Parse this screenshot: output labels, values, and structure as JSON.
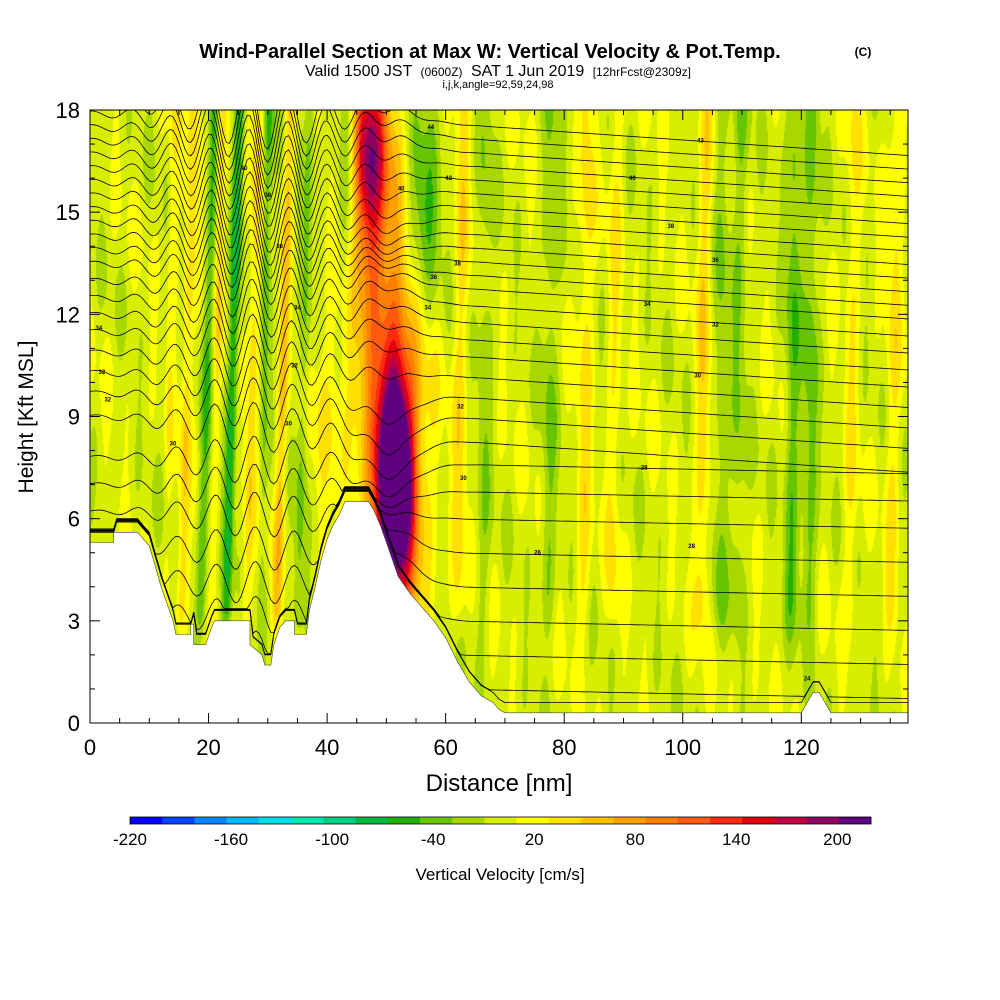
{
  "header": {
    "title": "Wind-Parallel Section at Max W: Vertical Velocity & Pot.Temp.",
    "copyright": "(C)",
    "valid_prefix": "Valid 1500 JST",
    "valid_utc": "(0600Z)",
    "valid_date": "SAT 1 Jun 2019",
    "forecast": "[12hrFcst@2309z]",
    "section_params": "i,j,k,angle=92,59,24,98"
  },
  "chart_data": {
    "type": "heatmap",
    "xlabel": "Distance [nm]",
    "ylabel": "Height [Kft MSL]",
    "xlim": [
      0,
      138
    ],
    "ylim": [
      0,
      18
    ],
    "x_ticks": [
      "0",
      "20",
      "40",
      "60",
      "80",
      "100",
      "120"
    ],
    "y_ticks": [
      "0",
      "3",
      "6",
      "9",
      "12",
      "15",
      "18"
    ],
    "colorbar": {
      "label": "Vertical Velocity [cm/s]",
      "min": -220,
      "max": 220,
      "step": 20,
      "tick_labels": [
        "-220",
        "-160",
        "-100",
        "-40",
        "20",
        "80",
        "140",
        "200"
      ],
      "colors": [
        "#0000ff",
        "#0044ff",
        "#0088ff",
        "#00bbff",
        "#00e0e8",
        "#00e8b0",
        "#00d080",
        "#00b840",
        "#22b000",
        "#66c400",
        "#a8d800",
        "#d8ee00",
        "#ffff00",
        "#ffe000",
        "#ffc000",
        "#ffa000",
        "#ff8000",
        "#ff5a10",
        "#ff2a10",
        "#e00010",
        "#c00040",
        "#900060",
        "#600080"
      ]
    },
    "terrain": [
      [
        0,
        5.3
      ],
      [
        4,
        5.3
      ],
      [
        4,
        5.6
      ],
      [
        8,
        5.6
      ],
      [
        10,
        5.2
      ],
      [
        11,
        4.6
      ],
      [
        12,
        4.0
      ],
      [
        13,
        3.5
      ],
      [
        14,
        3.0
      ],
      [
        14.5,
        2.6
      ],
      [
        17,
        2.6
      ],
      [
        17,
        2.9
      ],
      [
        17.5,
        2.9
      ],
      [
        17.5,
        2.3
      ],
      [
        19.5,
        2.3
      ],
      [
        20.5,
        2.8
      ],
      [
        21,
        3.0
      ],
      [
        27,
        3.0
      ],
      [
        27,
        2.3
      ],
      [
        29,
        2.0
      ],
      [
        29.5,
        1.7
      ],
      [
        30.5,
        1.7
      ],
      [
        31,
        2.3
      ],
      [
        32,
        2.8
      ],
      [
        33,
        3.0
      ],
      [
        34.5,
        3.0
      ],
      [
        34.5,
        2.6
      ],
      [
        36.5,
        2.6
      ],
      [
        37,
        3.3
      ],
      [
        38,
        4.0
      ],
      [
        39,
        4.8
      ],
      [
        40,
        5.4
      ],
      [
        41,
        5.8
      ],
      [
        42,
        6.1
      ],
      [
        43,
        6.5
      ],
      [
        47,
        6.5
      ],
      [
        48,
        6.2
      ],
      [
        49,
        5.8
      ],
      [
        50,
        5.3
      ],
      [
        51,
        4.8
      ],
      [
        52,
        4.3
      ],
      [
        54,
        3.8
      ],
      [
        56,
        3.4
      ],
      [
        58,
        3.0
      ],
      [
        60,
        2.5
      ],
      [
        62,
        1.8
      ],
      [
        64,
        1.2
      ],
      [
        66,
        0.8
      ],
      [
        68,
        0.6
      ],
      [
        69,
        0.4
      ],
      [
        70,
        0.3
      ],
      [
        120,
        0.3
      ],
      [
        121,
        0.6
      ],
      [
        122,
        0.9
      ],
      [
        123,
        0.9
      ],
      [
        124,
        0.6
      ],
      [
        125,
        0.3
      ],
      [
        138,
        0.3
      ]
    ],
    "updrafts": [
      {
        "x": 51.5,
        "y": 7.3,
        "w": 2.3,
        "h": 2.2,
        "value": 210
      },
      {
        "x": 51.5,
        "y": 7.0,
        "w": 3.0,
        "h": 3.5,
        "value": 160
      },
      {
        "x": 51.5,
        "y": 7.5,
        "w": 4.5,
        "h": 6.0,
        "value": 100
      },
      {
        "x": 50.5,
        "y": 9.0,
        "w": 6.0,
        "h": 10.0,
        "value": 50
      },
      {
        "x": 47.0,
        "y": 16.5,
        "w": 2.5,
        "h": 2.5,
        "value": 150
      },
      {
        "x": 47.0,
        "y": 16.0,
        "w": 4.0,
        "h": 5.0,
        "value": 80
      },
      {
        "x": 40.5,
        "y": 9.5,
        "w": 4.0,
        "h": 3.0,
        "value": 30
      }
    ],
    "bands": [
      {
        "x0": 12.0,
        "x1": 24.0,
        "wave": [
          {
            "x": 0.0,
            "amp": 30
          },
          {
            "x": 3.3,
            "amp": 45
          },
          {
            "x": 6.7,
            "amp": -45
          }
        ]
      },
      {
        "x0": 20.0,
        "x1": 34.0,
        "wave": [
          {
            "x": 0.0,
            "amp": 40
          },
          {
            "x": 3.0,
            "amp": -70
          },
          {
            "x": 6.3,
            "amp": 45
          }
        ]
      },
      {
        "x0": 28.0,
        "x1": 42.0,
        "wave": [
          {
            "x": 0.0,
            "amp": -60
          },
          {
            "x": 3.5,
            "amp": 50
          },
          {
            "x": 7.0,
            "amp": -40
          }
        ]
      }
    ],
    "streaks": [
      {
        "x": 106,
        "amp": -30
      },
      {
        "x": 109,
        "amp": -30
      },
      {
        "x": 118,
        "amp": -45
      },
      {
        "x": 121,
        "amp": -40
      },
      {
        "x": 128,
        "amp": 25
      },
      {
        "x": 77,
        "amp": -30
      },
      {
        "x": 83,
        "amp": 35
      },
      {
        "x": 88,
        "amp": 25
      },
      {
        "x": 103,
        "amp": 40
      },
      {
        "x": 62,
        "amp": 35
      },
      {
        "x": 66,
        "amp": -25
      },
      {
        "x": 135,
        "amp": 30
      }
    ],
    "theta": {
      "levels": 30,
      "min_height": [
        0.5,
        1.0,
        2.0,
        3.0,
        4.0,
        5.0,
        6.0,
        6.8,
        7.6,
        8.3,
        9.0,
        9.6,
        10.2,
        10.8,
        11.3,
        11.8,
        12.3,
        12.8,
        13.2,
        13.6,
        14.0,
        14.4,
        14.8,
        15.2,
        15.6,
        16.0,
        16.4,
        16.8,
        17.2,
        17.6
      ],
      "labels": [
        {
          "x": 1.5,
          "y": 11.6,
          "text": "34"
        },
        {
          "x": 2.0,
          "y": 10.3,
          "text": "32"
        },
        {
          "x": 3.0,
          "y": 9.5,
          "text": "32"
        },
        {
          "x": 14.0,
          "y": 8.2,
          "text": "30"
        },
        {
          "x": 26.0,
          "y": 16.3,
          "text": "40"
        },
        {
          "x": 30.0,
          "y": 15.5,
          "text": "38"
        },
        {
          "x": 32.0,
          "y": 14.0,
          "text": "36"
        },
        {
          "x": 35.0,
          "y": 12.2,
          "text": "34"
        },
        {
          "x": 34.5,
          "y": 10.5,
          "text": "32"
        },
        {
          "x": 33.5,
          "y": 8.8,
          "text": "30"
        },
        {
          "x": 57.5,
          "y": 17.5,
          "text": "44"
        },
        {
          "x": 60.5,
          "y": 16.0,
          "text": "42"
        },
        {
          "x": 52.5,
          "y": 15.7,
          "text": "40"
        },
        {
          "x": 62.0,
          "y": 13.5,
          "text": "38"
        },
        {
          "x": 58.0,
          "y": 13.1,
          "text": "36"
        },
        {
          "x": 57.0,
          "y": 12.2,
          "text": "34"
        },
        {
          "x": 62.5,
          "y": 9.3,
          "text": "32"
        },
        {
          "x": 63.0,
          "y": 7.2,
          "text": "30"
        },
        {
          "x": 103.0,
          "y": 17.1,
          "text": "43"
        },
        {
          "x": 91.5,
          "y": 16.0,
          "text": "40"
        },
        {
          "x": 98.0,
          "y": 14.6,
          "text": "38"
        },
        {
          "x": 105.5,
          "y": 13.6,
          "text": "36"
        },
        {
          "x": 94.0,
          "y": 12.3,
          "text": "34"
        },
        {
          "x": 105.5,
          "y": 11.7,
          "text": "32"
        },
        {
          "x": 102.5,
          "y": 10.2,
          "text": "30"
        },
        {
          "x": 93.5,
          "y": 7.5,
          "text": "28"
        },
        {
          "x": 75.5,
          "y": 5.0,
          "text": "26"
        },
        {
          "x": 101.5,
          "y": 5.2,
          "text": "28"
        },
        {
          "x": 121.0,
          "y": 1.3,
          "text": "24"
        }
      ]
    }
  }
}
